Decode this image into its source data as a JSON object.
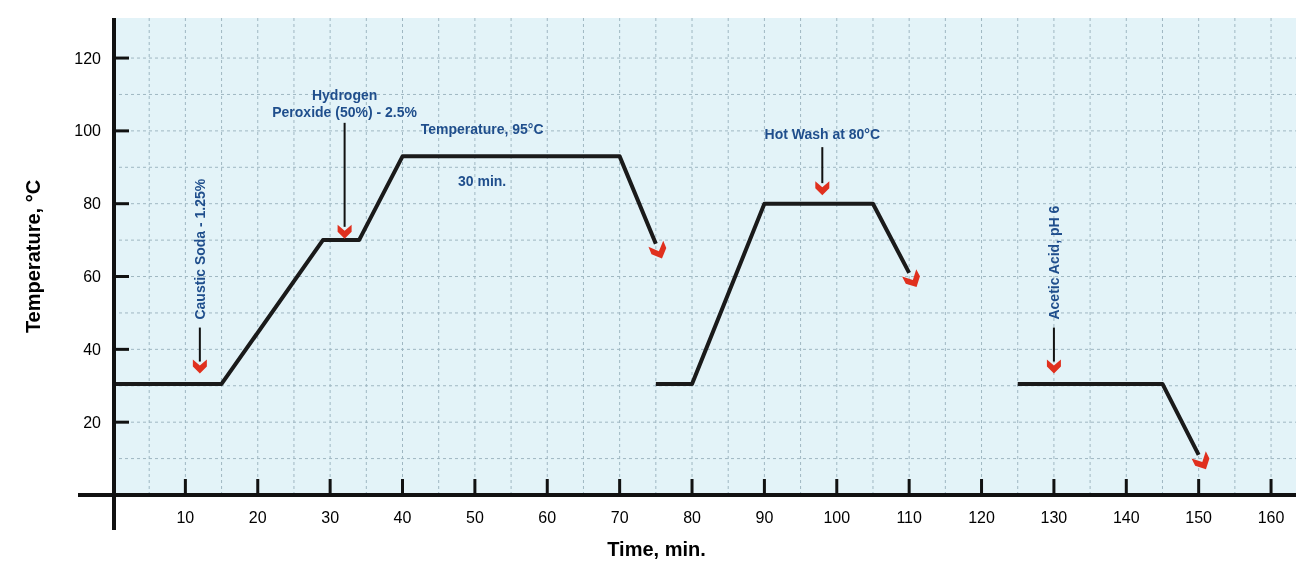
{
  "chart_data": {
    "type": "line",
    "xlabel": "Time, min.",
    "ylabel": "Temperature, °C",
    "xlim": [
      0,
      164
    ],
    "ylim": [
      0,
      131
    ],
    "xticks": [
      {
        "value": 5,
        "label": null
      },
      10,
      {
        "value": 15,
        "label": null
      },
      20,
      {
        "value": 25,
        "label": null
      },
      30,
      {
        "value": 35,
        "label": null
      },
      40,
      {
        "value": 45,
        "label": null
      },
      50,
      {
        "value": 55,
        "label": null
      },
      60,
      {
        "value": 65,
        "label": null
      },
      70,
      {
        "value": 75,
        "label": null
      },
      80,
      {
        "value": 85,
        "label": null
      },
      90,
      {
        "value": 95,
        "label": null
      },
      100,
      {
        "value": 105,
        "label": null
      },
      110,
      {
        "value": 115,
        "label": null
      },
      120,
      {
        "value": 125,
        "label": null
      },
      130,
      {
        "value": 135,
        "label": null
      },
      140,
      {
        "value": 145,
        "label": null
      },
      150,
      {
        "value": 155,
        "label": null
      },
      160
    ],
    "yticks": [
      {
        "value": 10,
        "label": null
      },
      20,
      {
        "value": 30,
        "label": null
      },
      40,
      {
        "value": 50,
        "label": null
      },
      60,
      {
        "value": 70,
        "label": null
      },
      80,
      {
        "value": 90,
        "label": null
      },
      100,
      {
        "value": 110,
        "label": null
      },
      120
    ],
    "grid": true,
    "marker": "none",
    "line_style": "solid",
    "series": [
      {
        "color": "#1a1a1a",
        "x": [
          0,
          15,
          29,
          34,
          40,
          70,
          75
        ],
        "values": [
          30.5,
          30.5,
          70,
          70,
          93,
          93,
          69
        ]
      },
      {
        "color": "#1a1a1a",
        "x": [
          75,
          80,
          90,
          105,
          110
        ],
        "values": [
          30.5,
          30.5,
          80,
          80,
          61
        ]
      },
      {
        "color": "#1a1a1a",
        "x": [
          125,
          145,
          150
        ],
        "values": [
          30.5,
          30.5,
          11
        ]
      }
    ],
    "annotations": [
      {
        "text": "Caustic Soda - 1.25%",
        "x": 12,
        "y": 35
      },
      {
        "text": "Hydrogen\nPeroxide (50%) - 2.5%",
        "x": 32,
        "y": 72
      },
      {
        "text": "Temperature, 95°C",
        "x": 51,
        "y": 93
      },
      {
        "text": "30 min.",
        "x": 51,
        "y": 93
      },
      {
        "text": "Hot Wash at 80°C",
        "x": 98,
        "y": 84
      },
      {
        "text": "Acetic Acid, pH 6",
        "x": 130,
        "y": 35
      }
    ]
  }
}
